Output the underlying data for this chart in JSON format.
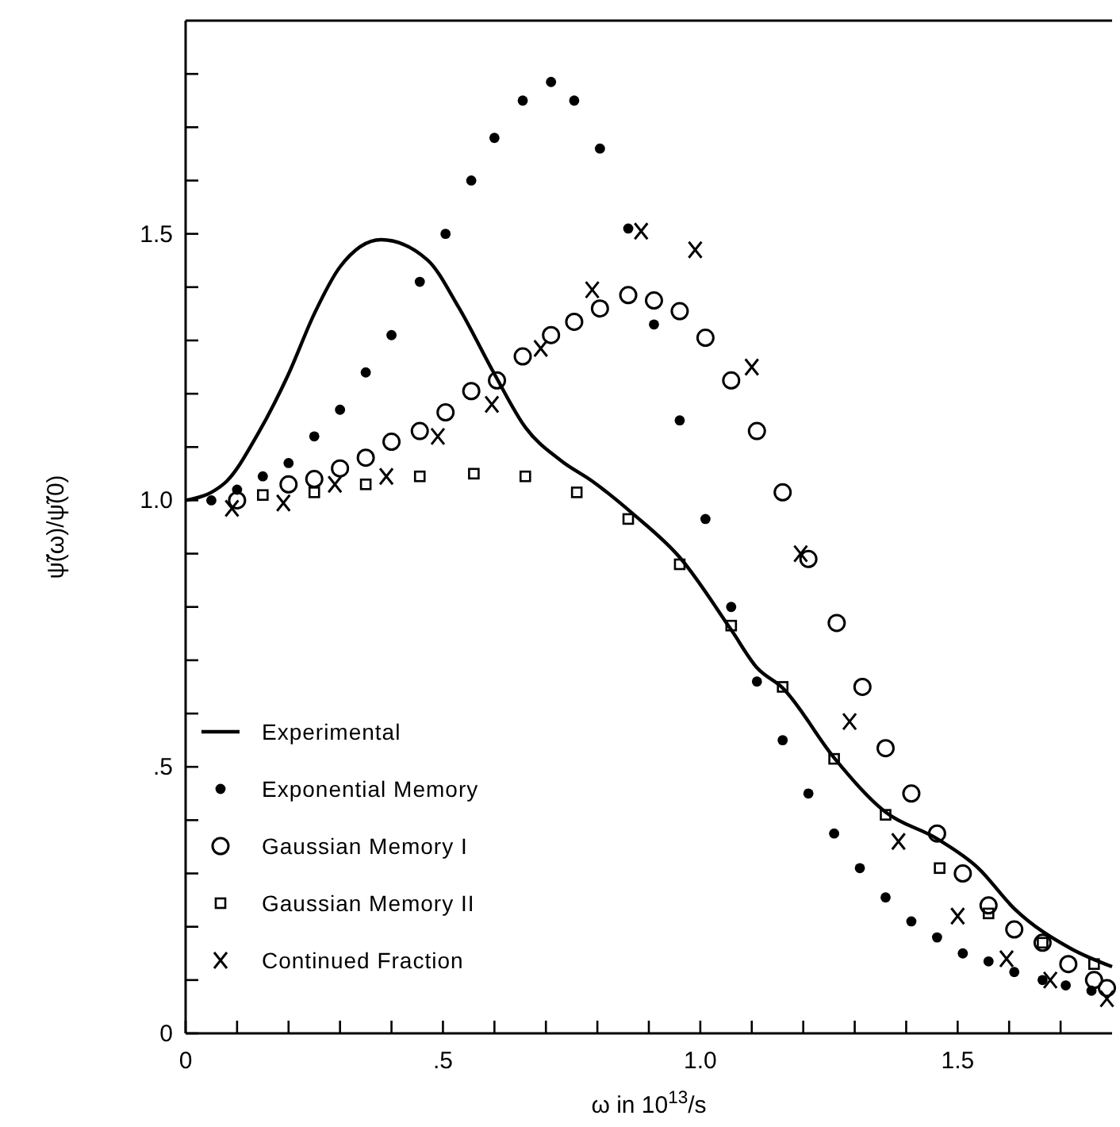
{
  "chart_data": {
    "type": "scatter",
    "xlabel": "ω in 10$^{13}$/s",
    "ylabel": "ψ̃(ω)/ψ̃(0)",
    "xlim": [
      0,
      1.8
    ],
    "ylim": [
      0,
      1.9
    ],
    "xticks": [
      0,
      {
        "value": 0.1,
        "label": null
      },
      {
        "value": 0.2,
        "label": null
      },
      {
        "value": 0.3,
        "label": null
      },
      {
        "value": 0.4,
        "label": null
      },
      {
        "value": 0.5,
        "label": ".5"
      },
      {
        "value": 0.6,
        "label": null
      },
      {
        "value": 0.7,
        "label": null
      },
      {
        "value": 0.8,
        "label": null
      },
      {
        "value": 0.9,
        "label": null
      },
      {
        "value": 1.0,
        "label": "1.0"
      },
      {
        "value": 1.1,
        "label": null
      },
      {
        "value": 1.2,
        "label": null
      },
      {
        "value": 1.3,
        "label": null
      },
      {
        "value": 1.4,
        "label": null
      },
      {
        "value": 1.5,
        "label": "1.5"
      },
      {
        "value": 1.6,
        "label": null
      },
      {
        "value": 1.7,
        "label": null
      }
    ],
    "yticks": [
      0,
      {
        "value": 0.1,
        "label": null
      },
      {
        "value": 0.2,
        "label": null
      },
      {
        "value": 0.3,
        "label": null
      },
      {
        "value": 0.4,
        "label": null
      },
      {
        "value": 0.5,
        "label": ".5"
      },
      {
        "value": 0.6,
        "label": null
      },
      {
        "value": 0.7,
        "label": null
      },
      {
        "value": 0.8,
        "label": null
      },
      {
        "value": 0.9,
        "label": null
      },
      {
        "value": 1.0,
        "label": "1.0"
      },
      {
        "value": 1.1,
        "label": null
      },
      {
        "value": 1.2,
        "label": null
      },
      {
        "value": 1.3,
        "label": null
      },
      {
        "value": 1.4,
        "label": null
      },
      {
        "value": 1.5,
        "label": "1.5"
      },
      {
        "value": 1.6,
        "label": null
      },
      {
        "value": 1.7,
        "label": null
      },
      {
        "value": 1.8,
        "label": null
      }
    ],
    "grid": false,
    "legend": "bottom left",
    "series": [
      {
        "name": "Experimental",
        "type": "line",
        "marker": "none",
        "line_style": "solid",
        "color": "#000000",
        "x": [
          0,
          0.05,
          0.08,
          0.14,
          0.2,
          0.25,
          0.3,
          0.38,
          0.47,
          0.53,
          0.6,
          0.66,
          0.73,
          0.79,
          0.87,
          0.96,
          1.06,
          1.11,
          1.16,
          1.26,
          1.36,
          1.46,
          1.54,
          1.61,
          1.72,
          1.8
        ],
        "values": [
          1.0,
          1.015,
          1.036,
          1.124,
          1.237,
          1.35,
          1.438,
          1.489,
          1.451,
          1.363,
          1.237,
          1.137,
          1.074,
          1.036,
          0.974,
          0.893,
          0.757,
          0.686,
          0.648,
          0.517,
          0.415,
          0.365,
          0.31,
          0.234,
          0.159,
          0.125
        ]
      },
      {
        "name": "Exponential Memory",
        "marker": "circle",
        "color": "#000000",
        "x": [
          0.05,
          0.1,
          0.15,
          0.2,
          0.25,
          0.3,
          0.35,
          0.4,
          0.455,
          0.505,
          0.555,
          0.6,
          0.655,
          0.71,
          0.755,
          0.805,
          0.86,
          0.91,
          0.96,
          1.01,
          1.06,
          1.11,
          1.16,
          1.21,
          1.26,
          1.31,
          1.36,
          1.41,
          1.46,
          1.51,
          1.56,
          1.61,
          1.665,
          1.71,
          1.76
        ],
        "values": [
          1.0,
          1.02,
          1.045,
          1.07,
          1.12,
          1.17,
          1.24,
          1.31,
          1.41,
          1.5,
          1.6,
          1.68,
          1.75,
          1.785,
          1.75,
          1.66,
          1.51,
          1.33,
          1.15,
          0.965,
          0.8,
          0.66,
          0.55,
          0.45,
          0.375,
          0.31,
          0.255,
          0.21,
          0.18,
          0.15,
          0.135,
          0.115,
          0.1,
          0.09,
          0.08
        ]
      },
      {
        "name": "Gaussian Memory I",
        "marker": "circle",
        "color": "#000000",
        "x": [
          0.1,
          0.2,
          0.25,
          0.3,
          0.35,
          0.4,
          0.455,
          0.505,
          0.555,
          0.605,
          0.655,
          0.71,
          0.755,
          0.805,
          0.86,
          0.91,
          0.96,
          1.01,
          1.06,
          1.11,
          1.16,
          1.21,
          1.265,
          1.315,
          1.36,
          1.41,
          1.46,
          1.51,
          1.56,
          1.61,
          1.665,
          1.715,
          1.765,
          1.79
        ],
        "values": [
          1.0,
          1.03,
          1.04,
          1.06,
          1.08,
          1.11,
          1.13,
          1.165,
          1.205,
          1.225,
          1.27,
          1.31,
          1.335,
          1.36,
          1.385,
          1.375,
          1.355,
          1.305,
          1.225,
          1.13,
          1.015,
          0.89,
          0.77,
          0.65,
          0.535,
          0.45,
          0.375,
          0.3,
          0.24,
          0.195,
          0.17,
          0.13,
          0.1,
          0.085
        ]
      },
      {
        "name": "Gaussian Memory II",
        "marker": "square",
        "color": "#000000",
        "x": [
          0.15,
          0.25,
          0.35,
          0.455,
          0.56,
          0.66,
          0.76,
          0.86,
          0.96,
          1.06,
          1.16,
          1.26,
          1.36,
          1.465,
          1.56,
          1.665,
          1.765
        ],
        "values": [
          1.01,
          1.015,
          1.03,
          1.045,
          1.05,
          1.045,
          1.015,
          0.965,
          0.88,
          0.765,
          0.65,
          0.515,
          0.41,
          0.31,
          0.225,
          0.17,
          0.13
        ]
      },
      {
        "name": "Continued Fraction",
        "marker": "cross",
        "color": "#000000",
        "x": [
          0.09,
          0.19,
          0.29,
          0.39,
          0.49,
          0.595,
          0.69,
          0.79,
          0.885,
          0.99,
          1.1,
          1.195,
          1.29,
          1.385,
          1.5,
          1.595,
          1.68,
          1.79
        ],
        "values": [
          0.985,
          0.995,
          1.03,
          1.045,
          1.12,
          1.18,
          1.285,
          1.395,
          1.505,
          1.47,
          1.25,
          0.9,
          0.585,
          0.36,
          0.22,
          0.14,
          0.1,
          0.065
        ]
      }
    ]
  }
}
